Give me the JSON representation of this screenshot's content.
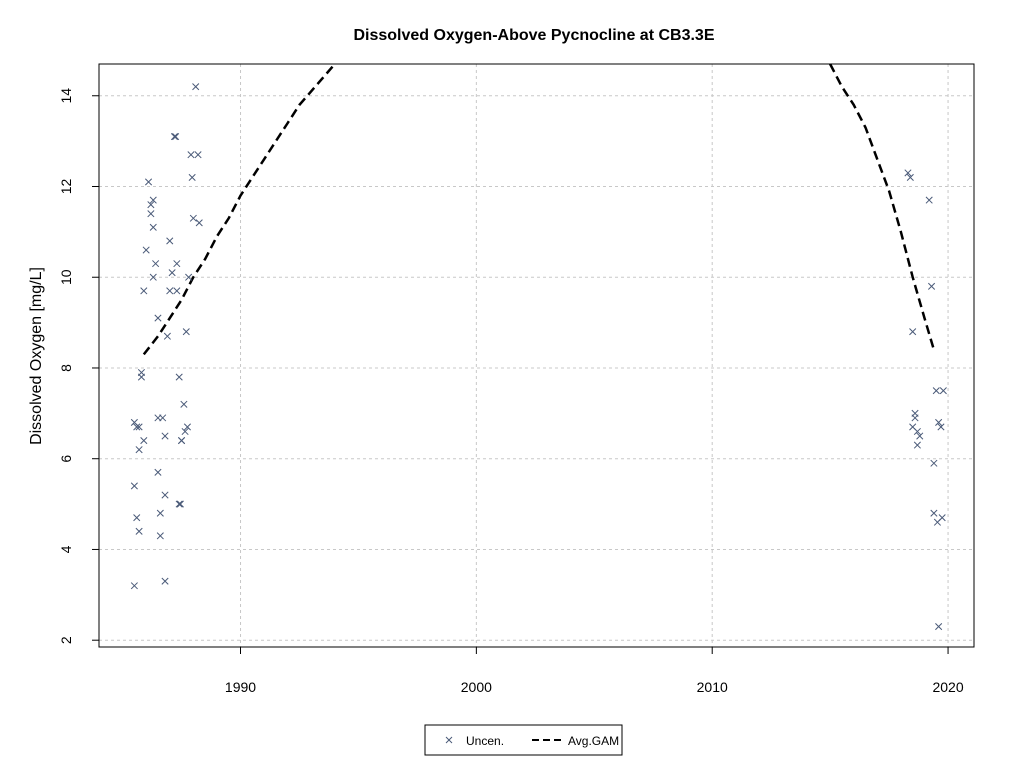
{
  "chart_data": {
    "type": "scatter",
    "title": "Dissolved Oxygen-Above Pycnocline at CB3.3E",
    "xlabel": "",
    "ylabel": "Dissolved Oxygen [mg/L]",
    "xlim": [
      1984.0,
      2021.1
    ],
    "ylim": [
      1.85,
      14.7
    ],
    "x_ticks": [
      1990,
      2000,
      2010,
      2020
    ],
    "y_ticks": [
      2,
      4,
      6,
      8,
      10,
      12,
      14
    ],
    "grid": true,
    "legend_position": "bottom-center",
    "series": [
      {
        "name": "Uncen.",
        "marker": "x",
        "color": "#4a5a78",
        "points": [
          [
            1985.5,
            6.8
          ],
          [
            1985.6,
            6.7
          ],
          [
            1985.7,
            6.7
          ],
          [
            1985.5,
            5.4
          ],
          [
            1985.6,
            4.7
          ],
          [
            1985.7,
            4.4
          ],
          [
            1985.5,
            3.2
          ],
          [
            1985.7,
            6.2
          ],
          [
            1985.9,
            6.4
          ],
          [
            1985.8,
            7.9
          ],
          [
            1985.8,
            7.8
          ],
          [
            1985.9,
            9.7
          ],
          [
            1986.0,
            10.6
          ],
          [
            1986.1,
            12.1
          ],
          [
            1986.2,
            11.6
          ],
          [
            1986.3,
            11.7
          ],
          [
            1986.2,
            11.4
          ],
          [
            1986.3,
            11.1
          ],
          [
            1986.4,
            10.3
          ],
          [
            1986.3,
            10.0
          ],
          [
            1986.5,
            9.1
          ],
          [
            1986.5,
            6.9
          ],
          [
            1986.7,
            6.9
          ],
          [
            1986.5,
            5.7
          ],
          [
            1986.6,
            4.8
          ],
          [
            1986.8,
            5.2
          ],
          [
            1986.6,
            4.3
          ],
          [
            1986.8,
            3.3
          ],
          [
            1986.8,
            6.5
          ],
          [
            1986.9,
            8.7
          ],
          [
            1987.0,
            9.7
          ],
          [
            1987.0,
            10.8
          ],
          [
            1987.1,
            10.1
          ],
          [
            1987.2,
            13.1
          ],
          [
            1987.25,
            13.1
          ],
          [
            1987.3,
            10.3
          ],
          [
            1987.3,
            9.7
          ],
          [
            1987.4,
            7.8
          ],
          [
            1987.5,
            6.4
          ],
          [
            1987.5,
            6.4
          ],
          [
            1987.4,
            5.0
          ],
          [
            1987.45,
            5.0
          ],
          [
            1987.6,
            7.2
          ],
          [
            1987.65,
            6.6
          ],
          [
            1987.75,
            6.7
          ],
          [
            1987.7,
            8.8
          ],
          [
            1987.8,
            10.0
          ],
          [
            1987.9,
            12.7
          ],
          [
            1987.95,
            12.2
          ],
          [
            1988.0,
            11.3
          ],
          [
            1988.1,
            14.2
          ],
          [
            1988.2,
            12.7
          ],
          [
            1988.25,
            11.2
          ],
          [
            2018.3,
            12.3
          ],
          [
            2018.4,
            12.2
          ],
          [
            2018.5,
            8.8
          ],
          [
            2018.5,
            6.7
          ],
          [
            2018.6,
            7.0
          ],
          [
            2018.6,
            6.9
          ],
          [
            2018.7,
            6.6
          ],
          [
            2018.8,
            6.5
          ],
          [
            2018.7,
            6.3
          ],
          [
            2019.2,
            11.7
          ],
          [
            2019.3,
            9.8
          ],
          [
            2019.5,
            7.5
          ],
          [
            2019.8,
            7.5
          ],
          [
            2019.6,
            6.8
          ],
          [
            2019.7,
            6.7
          ],
          [
            2019.4,
            5.9
          ],
          [
            2019.4,
            4.8
          ],
          [
            2019.55,
            4.6
          ],
          [
            2019.75,
            4.7
          ],
          [
            2019.6,
            2.3
          ]
        ]
      },
      {
        "name": "Avg.GAM",
        "line_style": "dashed",
        "color": "#000000",
        "segments": [
          [
            [
              1985.9,
              8.3
            ],
            [
              1986.5,
              8.7
            ],
            [
              1987.0,
              9.1
            ],
            [
              1987.5,
              9.5
            ],
            [
              1988.0,
              10.0
            ],
            [
              1988.5,
              10.4
            ],
            [
              1989.0,
              10.9
            ],
            [
              1989.5,
              11.3
            ],
            [
              1990.0,
              11.8
            ],
            [
              1990.5,
              12.2
            ],
            [
              1991.0,
              12.6
            ],
            [
              1991.5,
              13.0
            ],
            [
              1992.0,
              13.4
            ],
            [
              1992.5,
              13.8
            ],
            [
              1993.0,
              14.1
            ],
            [
              1993.5,
              14.4
            ],
            [
              1994.0,
              14.7
            ]
          ],
          [
            [
              2015.0,
              14.7
            ],
            [
              2015.5,
              14.2
            ],
            [
              2016.0,
              13.8
            ],
            [
              2016.5,
              13.3
            ],
            [
              2017.0,
              12.6
            ],
            [
              2017.5,
              11.9
            ],
            [
              2018.0,
              11.0
            ],
            [
              2018.5,
              10.0
            ],
            [
              2019.0,
              9.1
            ],
            [
              2019.4,
              8.4
            ]
          ]
        ]
      }
    ]
  }
}
